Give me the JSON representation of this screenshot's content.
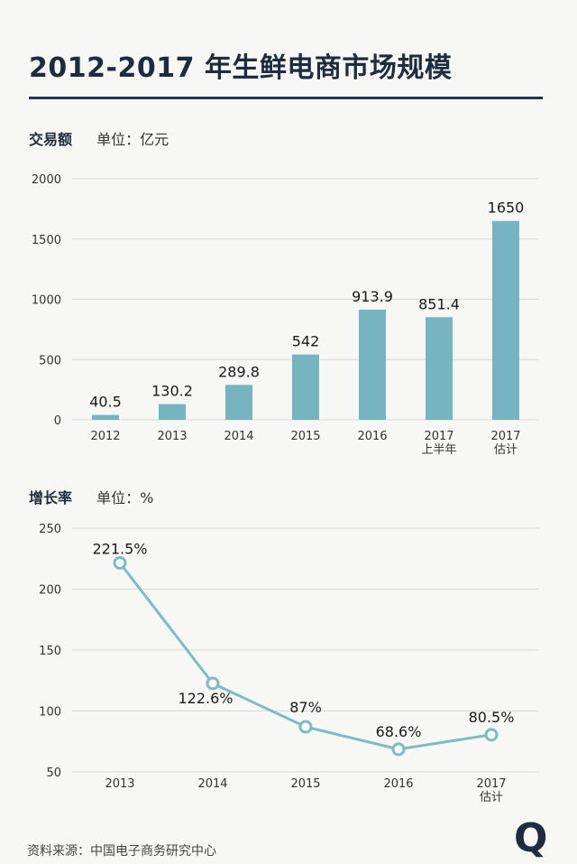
{
  "header": {
    "title": "2012-2017 年生鲜电商市场规模"
  },
  "sections": {
    "volume": {
      "label": "交易额",
      "unit": "单位：亿元"
    },
    "growth": {
      "label": "增长率",
      "unit": "单位：%"
    }
  },
  "footer": {
    "source": "资料来源：中国电子商务研究中心",
    "logo": "Q"
  },
  "colors": {
    "bar": "#76b5c0",
    "line": "#7cbcc2",
    "grid": "#d9d9d9",
    "axis_text": "#333333"
  },
  "chart_data": [
    {
      "type": "bar",
      "categories": [
        "2012",
        "2013",
        "2014",
        "2015",
        "2016",
        "2017\n上半年",
        "2017\n估计"
      ],
      "values": [
        40.5,
        130.2,
        289.8,
        542,
        913.9,
        851.4,
        1650
      ],
      "value_labels": [
        "40.5",
        "130.2",
        "289.8",
        "542",
        "913.9",
        "851.4",
        "1650"
      ],
      "title": "交易额",
      "ylabel": "单位：亿元",
      "ylim": [
        0,
        2000
      ],
      "yticks": [
        0,
        500,
        1000,
        1500,
        2000
      ],
      "grid": true
    },
    {
      "type": "line",
      "categories": [
        "2013",
        "2014",
        "2015",
        "2016",
        "2017\n估计"
      ],
      "values": [
        221.5,
        122.6,
        87,
        68.6,
        80.5
      ],
      "value_labels": [
        "221.5%",
        "122.6%",
        "87%",
        "68.6%",
        "80.5%"
      ],
      "title": "增长率",
      "ylabel": "单位：%",
      "ylim": [
        50,
        250
      ],
      "yticks": [
        50,
        100,
        150,
        200,
        250
      ],
      "grid": true
    }
  ]
}
